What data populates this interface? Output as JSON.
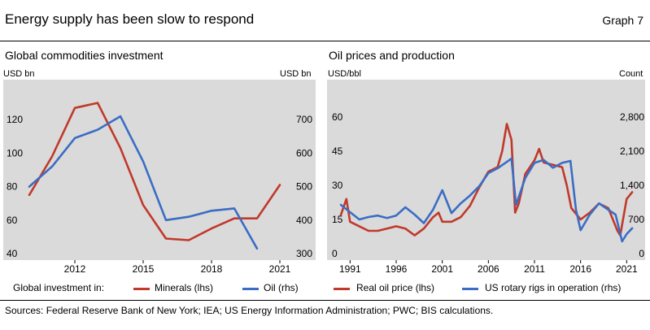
{
  "header": {
    "title": "Energy supply has been slow to respond",
    "graph_label": "Graph 7"
  },
  "footer": {
    "sources": "Sources: Federal Reserve Bank of New York; IEA; US Energy Information Administration; PWC; BIS calculations."
  },
  "colors": {
    "red": "#C0392B",
    "blue": "#3B6DC4",
    "panel_bg": "#DADADA",
    "rule": "#000000"
  },
  "chart_data": [
    {
      "type": "line",
      "title": "Global commodities investment",
      "ylabel_left": "USD bn",
      "ylabel_right": "USD bn",
      "ylim_left": [
        40,
        140
      ],
      "ylim_right": [
        300,
        800
      ],
      "yticks_left": [
        "40",
        "60",
        "80",
        "100",
        "120"
      ],
      "yticks_right": [
        "300",
        "400",
        "500",
        "600",
        "700"
      ],
      "xlim": [
        2009.5,
        2022
      ],
      "xticks": [
        "2012",
        "2015",
        "2018",
        "2021"
      ],
      "legend_prefix": "Global investment in:",
      "series": [
        {
          "name": "Minerals (lhs)",
          "axis": "left",
          "color": "red",
          "x": [
            2010,
            2011,
            2012,
            2013,
            2014,
            2015,
            2016,
            2017,
            2018,
            2019,
            2020,
            2021
          ],
          "values": [
            75,
            98,
            127,
            130,
            103,
            69,
            49,
            48,
            55,
            61,
            61,
            81
          ]
        },
        {
          "name": "Oil (rhs)",
          "axis": "right",
          "color": "blue",
          "x": [
            2010,
            2011,
            2012,
            2013,
            2014,
            2015,
            2016,
            2017,
            2018,
            2019,
            2020
          ],
          "values": [
            500,
            560,
            645,
            670,
            710,
            575,
            400,
            410,
            428,
            435,
            315
          ]
        }
      ]
    },
    {
      "type": "line",
      "title": "Oil prices and production",
      "ylabel_left": "USD/bbl",
      "ylabel_right": "Count",
      "ylim_left": [
        0,
        75
      ],
      "ylim_right": [
        0,
        3500
      ],
      "yticks_left": [
        "0",
        "15",
        "30",
        "45",
        "60"
      ],
      "yticks_right": [
        "0",
        "700",
        "1,400",
        "2,100",
        "2,800"
      ],
      "xlim": [
        1988.5,
        2023
      ],
      "xticks": [
        "1991",
        "1996",
        "2001",
        "2006",
        "2011",
        "2016",
        "2021"
      ],
      "series": [
        {
          "name": "Real oil price (lhs)",
          "axis": "left",
          "color": "red",
          "x": [
            1990,
            1990.6,
            1991,
            1992,
            1993,
            1994,
            1995,
            1996,
            1997,
            1998,
            1999,
            2000,
            2000.6,
            2001,
            2002,
            2003,
            2004,
            2005,
            2006,
            2007,
            2007.5,
            2008.0,
            2008.5,
            2008.9,
            2009.3,
            2010,
            2011,
            2011.5,
            2012,
            2013,
            2014,
            2014.5,
            2015,
            2016,
            2017,
            2018,
            2019,
            2020,
            2020.3,
            2021,
            2021.6
          ],
          "values": [
            17,
            24,
            14,
            12,
            10,
            10,
            11,
            12,
            11,
            8,
            11,
            16,
            18,
            14,
            14,
            16,
            21,
            29,
            36,
            38,
            45,
            57,
            50,
            18,
            22,
            35,
            41,
            46,
            40,
            39,
            38,
            30,
            20,
            15,
            18,
            22,
            20,
            10,
            8,
            24,
            27
          ]
        },
        {
          "name": "US rotary rigs in operation (rhs)",
          "axis": "right",
          "color": "blue",
          "x": [
            1990,
            1991,
            1992,
            1993,
            1994,
            1995,
            1996,
            1997,
            1998,
            1999,
            2000,
            2001,
            2002,
            2003,
            2004,
            2005,
            2006,
            2007,
            2008,
            2008.5,
            2009,
            2010,
            2011,
            2012,
            2013,
            2014,
            2014.9,
            2015.5,
            2016,
            2017,
            2018,
            2019,
            2019.8,
            2020.5,
            2021,
            2021.6
          ],
          "values": [
            1000,
            850,
            700,
            750,
            780,
            730,
            780,
            950,
            800,
            625,
            900,
            1300,
            830,
            1030,
            1190,
            1380,
            1650,
            1750,
            1880,
            1950,
            1000,
            1550,
            1860,
            1920,
            1760,
            1860,
            1900,
            900,
            480,
            800,
            1030,
            900,
            800,
            250,
            400,
            520
          ]
        }
      ]
    }
  ]
}
